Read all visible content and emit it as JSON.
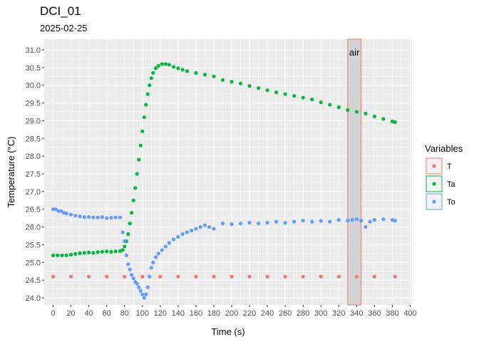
{
  "chart_data": {
    "type": "scatter",
    "title": "DCI_01",
    "subtitle": "2025-02-25",
    "xlabel": "Time (s)",
    "ylabel": "Temperature (°C)",
    "xlim": [
      -10,
      402
    ],
    "ylim": [
      23.8,
      31.3
    ],
    "x_ticks": [
      0,
      20,
      40,
      60,
      80,
      100,
      120,
      140,
      160,
      180,
      200,
      220,
      240,
      260,
      280,
      300,
      320,
      340,
      360,
      380,
      400
    ],
    "y_ticks": [
      24.0,
      24.5,
      25.0,
      25.5,
      26.0,
      26.5,
      27.0,
      27.5,
      28.0,
      28.5,
      29.0,
      29.5,
      30.0,
      30.5,
      31.0
    ],
    "grid": true,
    "legend": {
      "title": "Variables",
      "position": "right"
    },
    "annotations": [
      {
        "type": "rect",
        "x_range": [
          330,
          345
        ],
        "label": "air",
        "fill": "#d3d3d3",
        "stroke": "#f8766d"
      }
    ],
    "series": [
      {
        "name": "T",
        "color": "#f8766d",
        "x": [
          0,
          20,
          40,
          60,
          80,
          100,
          120,
          140,
          160,
          180,
          200,
          220,
          240,
          260,
          280,
          300,
          320,
          340,
          360,
          383
        ],
        "y": [
          24.6,
          24.6,
          24.6,
          24.6,
          24.6,
          24.6,
          24.6,
          24.6,
          24.6,
          24.6,
          24.6,
          24.6,
          24.6,
          24.6,
          24.6,
          24.6,
          24.6,
          24.6,
          24.6,
          24.6
        ]
      },
      {
        "name": "Ta",
        "color": "#00ba38",
        "x": [
          0,
          5,
          10,
          15,
          20,
          25,
          30,
          35,
          40,
          45,
          50,
          55,
          60,
          65,
          70,
          75,
          78,
          80,
          82,
          84,
          86,
          88,
          90,
          92,
          94,
          96,
          98,
          100,
          102,
          104,
          106,
          108,
          110,
          112,
          115,
          118,
          122,
          126,
          130,
          135,
          140,
          145,
          150,
          160,
          170,
          180,
          190,
          200,
          210,
          220,
          230,
          240,
          250,
          260,
          270,
          280,
          290,
          300,
          310,
          320,
          330,
          340,
          350,
          360,
          370,
          380,
          383
        ],
        "y": [
          25.2,
          25.2,
          25.2,
          25.2,
          25.22,
          25.24,
          25.26,
          25.27,
          25.28,
          25.27,
          25.29,
          25.3,
          25.31,
          25.3,
          25.31,
          25.32,
          25.35,
          25.45,
          25.6,
          25.8,
          26.1,
          26.4,
          26.75,
          27.1,
          27.5,
          27.9,
          28.3,
          28.7,
          29.1,
          29.45,
          29.75,
          30.0,
          30.2,
          30.35,
          30.48,
          30.55,
          30.6,
          30.6,
          30.58,
          30.52,
          30.48,
          30.44,
          30.4,
          30.35,
          30.3,
          30.25,
          30.15,
          30.1,
          30.05,
          29.98,
          29.92,
          29.86,
          29.8,
          29.75,
          29.7,
          29.65,
          29.6,
          29.52,
          29.45,
          29.38,
          29.3,
          29.25,
          29.2,
          29.12,
          29.05,
          28.98,
          28.96
        ]
      },
      {
        "name": "To",
        "color": "#619cff",
        "x": [
          0,
          3,
          6,
          9,
          12,
          15,
          20,
          25,
          30,
          35,
          40,
          45,
          50,
          55,
          60,
          65,
          70,
          75,
          78,
          80,
          82,
          84,
          86,
          88,
          90,
          92,
          94,
          96,
          98,
          100,
          102,
          104,
          106,
          108,
          110,
          112,
          115,
          118,
          122,
          126,
          130,
          135,
          140,
          145,
          150,
          155,
          160,
          165,
          170,
          175,
          180,
          190,
          200,
          210,
          220,
          230,
          240,
          250,
          260,
          270,
          280,
          290,
          300,
          310,
          320,
          330,
          335,
          340,
          345,
          350,
          355,
          360,
          370,
          380,
          383
        ],
        "y": [
          26.5,
          26.5,
          26.45,
          26.45,
          26.4,
          26.38,
          26.35,
          26.32,
          26.3,
          26.28,
          26.28,
          26.27,
          26.27,
          26.28,
          26.25,
          26.26,
          26.27,
          26.27,
          25.85,
          25.6,
          25.2,
          24.95,
          24.8,
          24.65,
          24.55,
          24.45,
          24.4,
          24.3,
          24.2,
          24.1,
          24.0,
          24.1,
          24.3,
          24.6,
          24.85,
          25.0,
          25.15,
          25.25,
          25.35,
          25.45,
          25.55,
          25.65,
          25.72,
          25.8,
          25.85,
          25.9,
          25.95,
          26.0,
          26.05,
          26.0,
          25.95,
          26.1,
          26.08,
          26.1,
          26.12,
          26.1,
          26.12,
          26.15,
          26.12,
          26.15,
          26.18,
          26.15,
          26.17,
          26.15,
          26.2,
          26.18,
          26.2,
          26.22,
          26.18,
          26.0,
          26.15,
          26.2,
          26.22,
          26.2,
          26.18
        ]
      }
    ]
  }
}
